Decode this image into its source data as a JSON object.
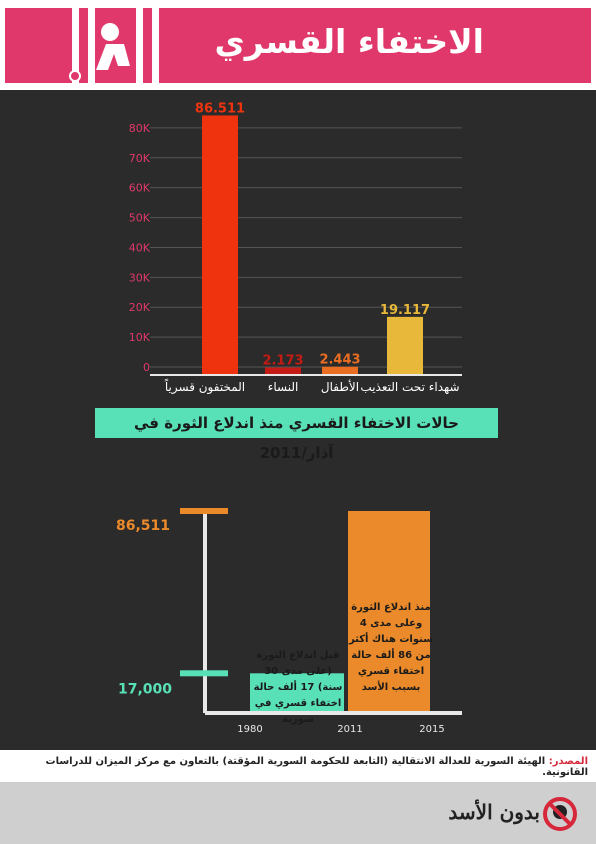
{
  "header": {
    "title": "الاختفاء القسري"
  },
  "colors": {
    "banner": "#e0386a",
    "background": "#2b2b2b",
    "red": "#f0330f",
    "orange": "#ea8a2a",
    "yellow": "#e8b83a",
    "green": "#58e0b6",
    "axis_tick": "#e0386a"
  },
  "chart_data": [
    {
      "type": "bar",
      "categories": [
        "المختفون قسرياً",
        "النساء",
        "الأطفال",
        "شهداء تحت التعذيب"
      ],
      "values": [
        86511,
        2173,
        2443,
        19117
      ],
      "value_labels": [
        "86.511",
        "2.173",
        "2.443",
        "19.117"
      ],
      "bar_colors": [
        "#f0330f",
        "#c41b14",
        "#ea6e22",
        "#e8b83a"
      ],
      "y_ticks": [
        "0",
        "10K",
        "20K",
        "30K",
        "40K",
        "50K",
        "60K",
        "70K",
        "80K"
      ],
      "ylim": [
        0,
        88000
      ],
      "caption": "حالات الاختفاء القسري منذ اندلاع الثورة في آذار/2011"
    },
    {
      "type": "bar",
      "x_labels": [
        "1980",
        "2011",
        "2015"
      ],
      "y_labels": [
        "86,511",
        "17,000"
      ],
      "values": [
        17000,
        86511
      ],
      "notes": [
        {
          "text": "منذ اندلاع الثورة وعلى مدى 4 سنوات هناك أكثر من 86 ألف حالة اختفاء قسري بسبب الأسد",
          "color": "#ea8a2a"
        },
        {
          "text": "قبل اندلاع الثورة (على مدى 30 سنة) 17 ألف حالة اختفاء قسري في سورية",
          "color": "#58e0b6"
        }
      ]
    }
  ],
  "source": {
    "label": "المصدر:",
    "text": "الهيئة السورية للعدالة الانتقالية (التابعة للحكومة السورية المؤقتة) بالتعاون مع مركز الميزان للدراسات القانونية."
  },
  "footer": {
    "logo_text": "بدون الأسد"
  }
}
